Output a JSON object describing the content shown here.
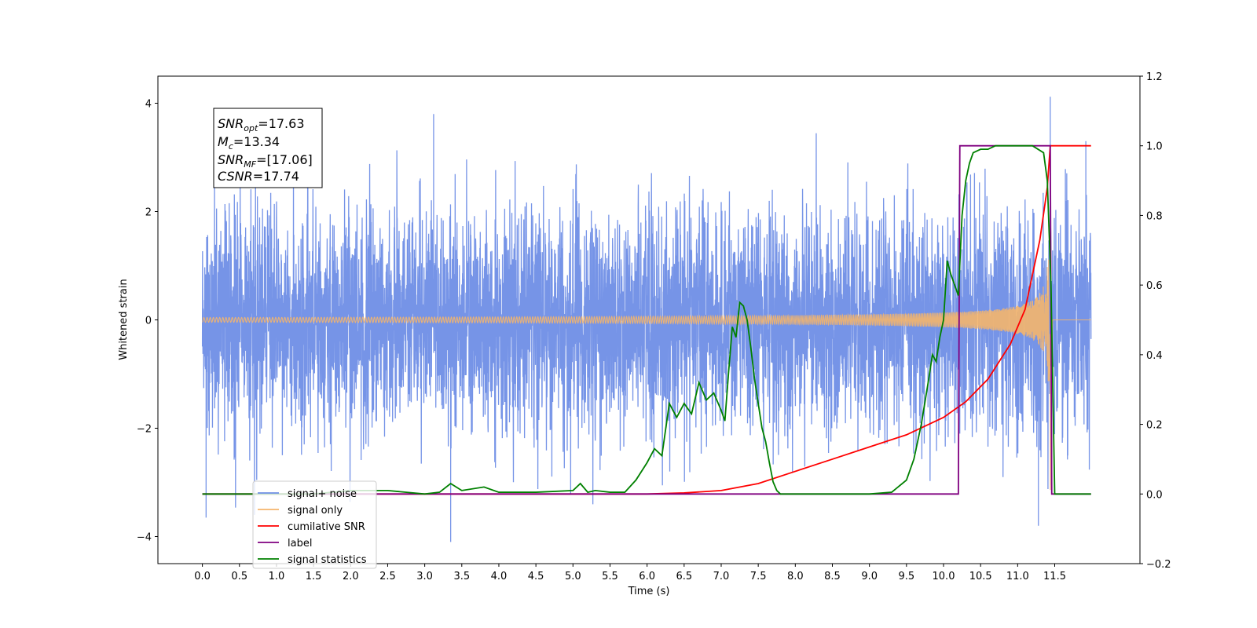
{
  "chart_data": {
    "type": "line",
    "title": "",
    "xlabel": "Time (s)",
    "ylabel": "Whitened strain",
    "xlim": [
      -0.6,
      12.65
    ],
    "ylim": [
      -4.5,
      4.5
    ],
    "y2lim": [
      -0.2,
      1.2
    ],
    "grid": false,
    "legend_position": "lower-left",
    "x_ticks": [
      0.0,
      0.5,
      1.0,
      1.5,
      2.0,
      2.5,
      3.0,
      3.5,
      4.0,
      4.5,
      5.0,
      5.5,
      6.0,
      6.5,
      7.0,
      7.5,
      8.0,
      8.5,
      9.0,
      9.5,
      10.0,
      10.5,
      11.0,
      11.5
    ],
    "x_tick_labels": [
      "0.0",
      "0.5",
      "1.0",
      "1.5",
      "2.0",
      "2.5",
      "3.0",
      "3.5",
      "4.0",
      "4.5",
      "5.0",
      "5.5",
      "6.0",
      "6.5",
      "7.0",
      "7.5",
      "8.0",
      "8.5",
      "9.0",
      "9.5",
      "10.0",
      "10.5",
      "11.0",
      "11.5"
    ],
    "y_ticks": [
      -4,
      -2,
      0,
      2,
      4
    ],
    "y_tick_labels": [
      "−4",
      "−2",
      "0",
      "2",
      "4"
    ],
    "y2_ticks": [
      -0.2,
      0.0,
      0.2,
      0.4,
      0.6,
      0.8,
      1.0,
      1.2
    ],
    "y2_tick_labels": [
      "−0.2",
      "0.0",
      "0.2",
      "0.4",
      "0.6",
      "0.8",
      "1.0",
      "1.2"
    ],
    "annotation": {
      "snr_opt": {
        "name": "SNR",
        "sub": "opt",
        "value": "=17.63"
      },
      "mc": {
        "name": "M",
        "sub": "c",
        "value": "=13.34"
      },
      "snr_mf": {
        "name": "SNR",
        "sub": "MF",
        "value": "=[17.06]"
      },
      "csnr": {
        "name": "CSNR",
        "sub": "",
        "value": "=17.74"
      }
    },
    "series": [
      {
        "name": "signal+ noise",
        "color": "#6f8ee6",
        "axis": "left",
        "noise": {
          "x_start": 0.0,
          "x_end": 11.99,
          "std": 1.0,
          "max_peak": 4.12,
          "min_peak": -4.1
        }
      },
      {
        "name": "signal only",
        "color": "#f5b56b",
        "axis": "left",
        "chirp": {
          "x_start": 0.0,
          "x_merger": 11.44,
          "x_end": 11.99,
          "peak_amplitude": 3.3
        }
      },
      {
        "name": "cumilative SNR",
        "color": "#ff0000",
        "axis": "right",
        "x": [
          0.0,
          6.0,
          6.5,
          7.0,
          7.5,
          8.0,
          8.5,
          9.0,
          9.5,
          10.0,
          10.3,
          10.6,
          10.9,
          11.1,
          11.3,
          11.4,
          11.44,
          11.99
        ],
        "y": [
          0.0,
          0.0,
          0.003,
          0.01,
          0.03,
          0.065,
          0.1,
          0.135,
          0.17,
          0.22,
          0.265,
          0.33,
          0.43,
          0.53,
          0.73,
          0.88,
          1.0,
          1.0
        ]
      },
      {
        "name": "label",
        "color": "#800080",
        "axis": "right",
        "x": [
          0.0,
          10.2,
          10.22,
          11.44,
          11.46,
          11.99
        ],
        "y": [
          0.0,
          0.0,
          1.0,
          1.0,
          0.0,
          0.0
        ]
      },
      {
        "name": "signal statistics",
        "color": "#008000",
        "axis": "right",
        "x": [
          0.0,
          1.5,
          2.0,
          2.5,
          3.0,
          3.2,
          3.35,
          3.5,
          3.8,
          4.0,
          4.5,
          5.0,
          5.1,
          5.2,
          5.3,
          5.5,
          5.7,
          5.85,
          6.0,
          6.1,
          6.2,
          6.3,
          6.4,
          6.5,
          6.6,
          6.7,
          6.8,
          6.9,
          7.0,
          7.05,
          7.1,
          7.15,
          7.2,
          7.25,
          7.3,
          7.35,
          7.4,
          7.45,
          7.5,
          7.55,
          7.6,
          7.65,
          7.7,
          7.75,
          7.8,
          8.0,
          9.0,
          9.3,
          9.5,
          9.6,
          9.7,
          9.8,
          9.85,
          9.9,
          9.95,
          10.0,
          10.05,
          10.1,
          10.2,
          10.25,
          10.3,
          10.35,
          10.4,
          10.5,
          10.6,
          10.7,
          10.8,
          10.9,
          11.0,
          11.2,
          11.35,
          11.4,
          11.45,
          11.5,
          11.99
        ],
        "y": [
          0.0,
          0.0,
          0.01,
          0.01,
          0.0,
          0.005,
          0.03,
          0.01,
          0.02,
          0.005,
          0.005,
          0.01,
          0.03,
          0.005,
          0.01,
          0.005,
          0.005,
          0.04,
          0.09,
          0.13,
          0.11,
          0.26,
          0.22,
          0.26,
          0.23,
          0.32,
          0.27,
          0.29,
          0.24,
          0.21,
          0.35,
          0.48,
          0.45,
          0.55,
          0.54,
          0.5,
          0.42,
          0.33,
          0.26,
          0.19,
          0.15,
          0.09,
          0.035,
          0.01,
          0.0,
          0.0,
          0.0,
          0.005,
          0.04,
          0.1,
          0.2,
          0.33,
          0.4,
          0.38,
          0.45,
          0.5,
          0.67,
          0.63,
          0.57,
          0.8,
          0.9,
          0.95,
          0.98,
          0.99,
          0.99,
          1.0,
          1.0,
          1.0,
          1.0,
          1.0,
          0.98,
          0.9,
          0.6,
          0.0,
          0.0
        ]
      }
    ]
  }
}
